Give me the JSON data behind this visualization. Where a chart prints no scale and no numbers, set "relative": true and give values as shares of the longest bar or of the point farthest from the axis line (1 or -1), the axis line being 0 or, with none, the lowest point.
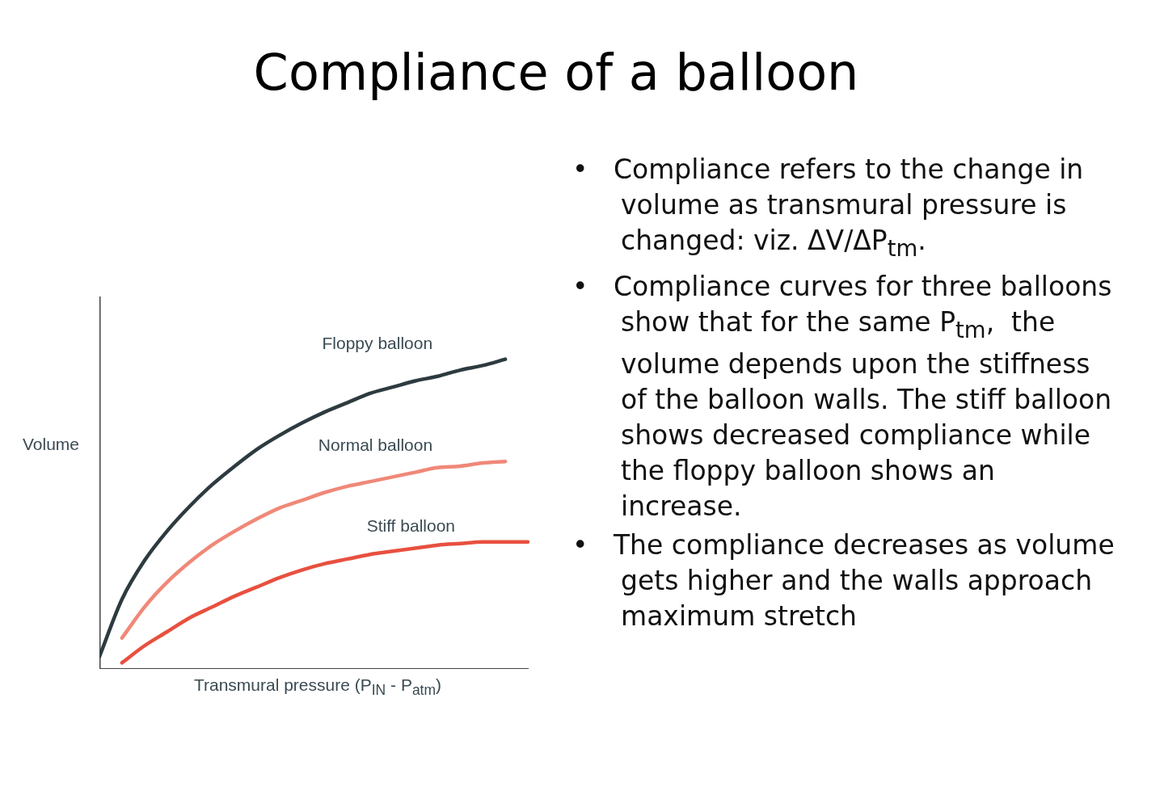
{
  "chart_data": [
    {
      "type": "line",
      "title": "Compliance of a balloon",
      "xlabel": "Transmural pressure (P$_{IN}$ - P$_{atm}$)",
      "ylabel": "Volume",
      "relative": true,
      "grid": false,
      "legend": false,
      "marker": "none",
      "line_style": "solid",
      "categories": [
        null,
        null,
        null,
        null,
        null,
        null,
        null,
        null,
        null,
        null,
        null,
        null,
        null,
        null,
        null,
        null,
        null,
        null,
        null,
        null
      ],
      "series": [
        {
          "name": "Floppy balloon",
          "color": "#2d3b40",
          "values": [
            0.04,
            0.225,
            0.35,
            0.445,
            0.525,
            0.595,
            0.655,
            0.71,
            0.755,
            0.795,
            0.83,
            0.86,
            0.89,
            0.91,
            0.93,
            0.945,
            0.965,
            0.98,
            1.0,
            null
          ]
        },
        {
          "name": "Normal balloon",
          "color": "#f08878",
          "values": [
            null,
            0.1,
            0.2,
            0.28,
            0.345,
            0.4,
            0.445,
            0.485,
            0.52,
            0.545,
            0.57,
            0.59,
            0.605,
            0.62,
            0.635,
            0.65,
            0.655,
            0.665,
            0.67,
            null
          ]
        },
        {
          "name": "Stiff balloon",
          "color": "#e8503f",
          "values": [
            null,
            0.02,
            0.075,
            0.12,
            0.165,
            0.2,
            0.235,
            0.265,
            0.295,
            0.32,
            0.34,
            0.355,
            0.37,
            0.38,
            0.39,
            0.4,
            0.405,
            0.41,
            0.41,
            0.41
          ]
        }
      ]
    },
    {
      "type": "other",
      "annotations": [
        "•   Compliance refers to the change in volume as transmural pressure is changed: viz. ΔV/ΔP$_{tm}$.",
        "•   Compliance curves for three balloons show that for the same P$_{tm}$,  the volume depends upon the stiffness of the balloon walls. The stiff balloon shows decreased compliance while the floppy balloon shows an increase.",
        "•   The compliance decreases as volume gets higher and the walls approach maximum stretch"
      ]
    }
  ]
}
